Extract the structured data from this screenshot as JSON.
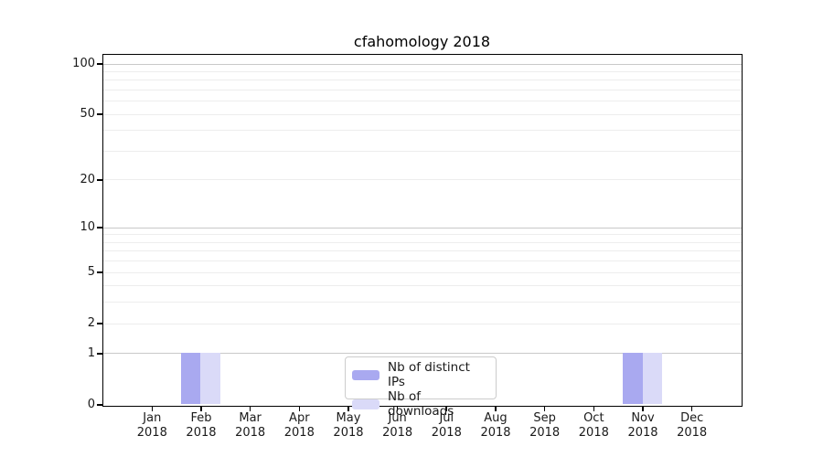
{
  "title": "cfahomology 2018",
  "chart_data": {
    "type": "bar",
    "title": "cfahomology 2018",
    "categories": [
      "Jan",
      "Feb",
      "Mar",
      "Apr",
      "May",
      "Jun",
      "Jul",
      "Aug",
      "Sep",
      "Oct",
      "Nov",
      "Dec"
    ],
    "category_year": "2018",
    "series": [
      {
        "name": "Nb of distinct IPs",
        "color": "#a9a9f0",
        "values": [
          0,
          1,
          0,
          0,
          0,
          0,
          0,
          0,
          0,
          0,
          1,
          0
        ]
      },
      {
        "name": "Nb of downloads",
        "color": "#dadaf8",
        "values": [
          0,
          1,
          0,
          0,
          0,
          0,
          0,
          0,
          0,
          0,
          1,
          0
        ]
      }
    ],
    "yscale": "symlog",
    "ylim": [
      0,
      100
    ],
    "y_ticks": [
      0,
      1,
      2,
      5,
      10,
      20,
      50,
      100
    ],
    "y_major_gridlines": [
      1,
      10,
      100
    ],
    "y_minor_gridlines": [
      2,
      3,
      4,
      5,
      6,
      7,
      8,
      9,
      20,
      30,
      40,
      50,
      60,
      70,
      80,
      90
    ],
    "grid": true,
    "legend_position": "bottom-center",
    "colors": {
      "axis": "#000000",
      "major_grid": "#c9c9c9",
      "minor_grid": "#ededed",
      "text": "#1a1a1a",
      "background": "#ffffff"
    }
  }
}
